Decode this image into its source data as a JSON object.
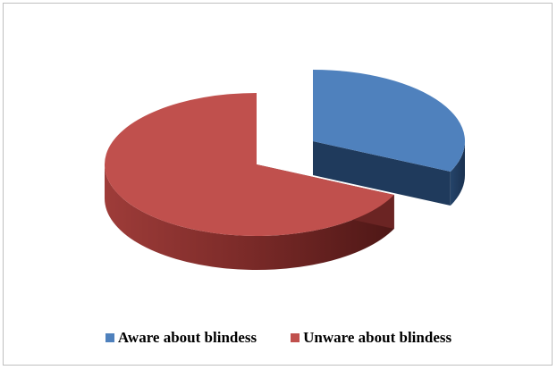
{
  "chart_data": {
    "type": "pie",
    "style": "3d-exploded",
    "title": "",
    "categories": [
      "Aware about blindess",
      "Unware about blindess"
    ],
    "values": [
      32,
      68
    ],
    "colors": [
      "#4f81bd",
      "#c0504d"
    ],
    "side_colors": [
      "#1f3a5c",
      "#6b2423"
    ],
    "legend_position": "bottom"
  }
}
